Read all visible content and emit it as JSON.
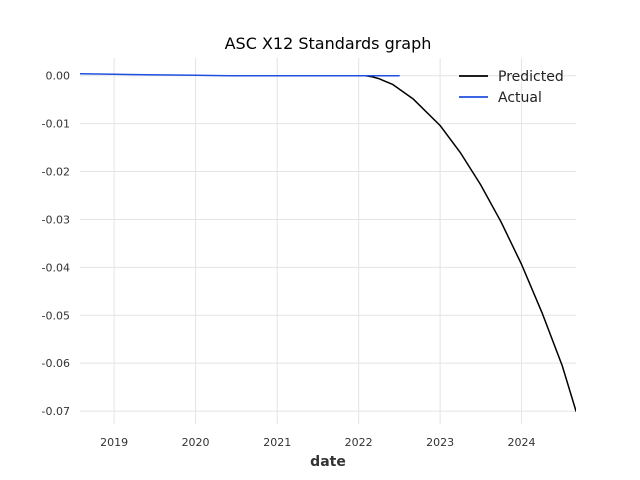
{
  "chart_data": {
    "type": "line",
    "title": "ASC X12 Standards graph",
    "xlabel": "date",
    "ylabel": "",
    "x_ticks": [
      "2019",
      "2020",
      "2021",
      "2022",
      "2023",
      "2024"
    ],
    "y_ticks": [
      "0.00",
      "-0.01",
      "-0.02",
      "-0.03",
      "-0.04",
      "-0.05",
      "-0.06",
      "-0.07"
    ],
    "xlim": [
      "2018-08-01",
      "2024-09-01"
    ],
    "ylim": [
      -0.0727,
      0.0037
    ],
    "grid": true,
    "legend": "top-right",
    "series": [
      {
        "name": "Predicted",
        "color": "#000000",
        "x": [
          "2022-01-01",
          "2022-02-01",
          "2022-03-01",
          "2022-04-01",
          "2022-06-01",
          "2022-09-01",
          "2023-01-01",
          "2023-04-01",
          "2023-07-01",
          "2023-10-01",
          "2024-01-01",
          "2024-04-01",
          "2024-07-01",
          "2024-09-01"
        ],
        "y": [
          0.0,
          0.0,
          -0.0002,
          -0.0006,
          -0.0018,
          -0.0048,
          -0.0104,
          -0.016,
          -0.0227,
          -0.0305,
          -0.0394,
          -0.0494,
          -0.0605,
          -0.07
        ]
      },
      {
        "name": "Actual",
        "color": "#1f4fe0",
        "x": [
          "2018-08-01",
          "2019-01-01",
          "2019-06-01",
          "2020-01-01",
          "2020-06-01",
          "2021-01-01",
          "2021-06-01",
          "2022-01-01",
          "2022-07-01"
        ],
        "y": [
          0.0004,
          0.0003,
          0.0002,
          0.0001,
          0.0,
          0.0,
          0.0,
          0.0,
          0.0
        ]
      }
    ]
  }
}
